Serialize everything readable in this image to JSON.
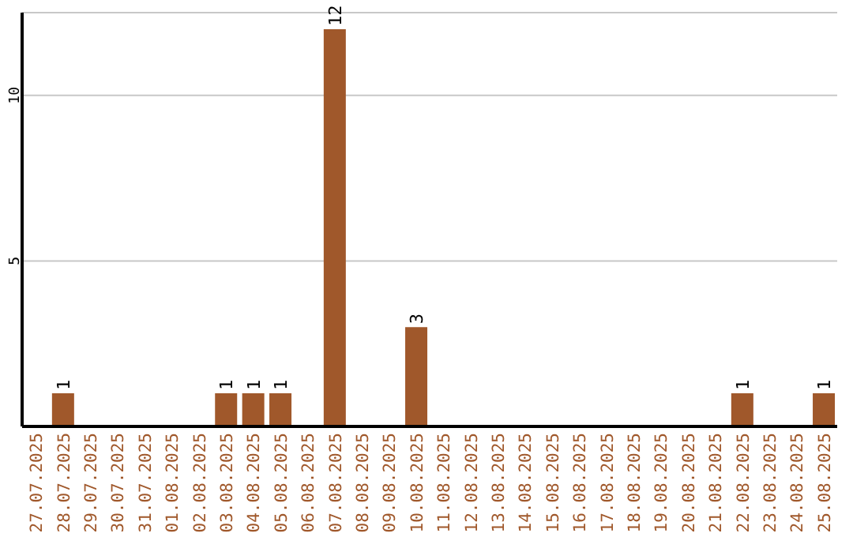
{
  "chart_data": {
    "type": "bar",
    "categories": [
      "27.07.2025",
      "28.07.2025",
      "29.07.2025",
      "30.07.2025",
      "31.07.2025",
      "01.08.2025",
      "02.08.2025",
      "03.08.2025",
      "04.08.2025",
      "05.08.2025",
      "06.08.2025",
      "07.08.2025",
      "08.08.2025",
      "09.08.2025",
      "10.08.2025",
      "11.08.2025",
      "12.08.2025",
      "13.08.2025",
      "14.08.2025",
      "15.08.2025",
      "16.08.2025",
      "17.08.2025",
      "18.08.2025",
      "19.08.2025",
      "20.08.2025",
      "21.08.2025",
      "22.08.2025",
      "23.08.2025",
      "24.08.2025",
      "25.08.2025"
    ],
    "values": [
      0,
      1,
      0,
      0,
      0,
      0,
      0,
      1,
      1,
      1,
      0,
      12,
      0,
      0,
      3,
      0,
      0,
      0,
      0,
      0,
      0,
      0,
      0,
      0,
      0,
      0,
      1,
      0,
      0,
      1
    ],
    "value_labels": [
      null,
      "1",
      null,
      null,
      null,
      null,
      null,
      "1",
      "1",
      "1",
      null,
      "12",
      null,
      null,
      "3",
      null,
      null,
      null,
      null,
      null,
      null,
      null,
      null,
      null,
      null,
      null,
      "1",
      null,
      null,
      "1"
    ],
    "color": "#a0582b",
    "ylim": [
      0,
      12.5
    ],
    "yticks": [
      5,
      10
    ],
    "grid": "y"
  }
}
